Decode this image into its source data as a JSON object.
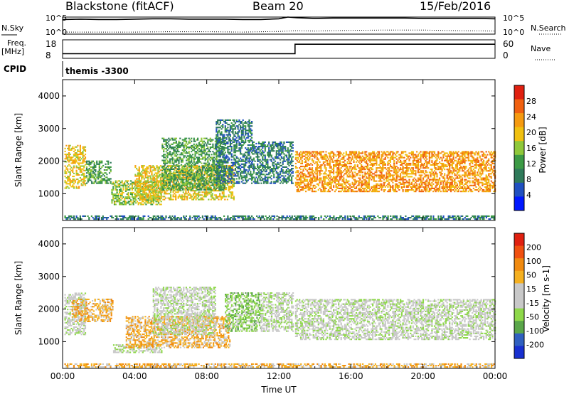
{
  "header": {
    "station": "Blackstone (fitACF)",
    "beam": "Beam 20",
    "date": "15/Feb/2016"
  },
  "summary": {
    "nsky_label": "N.Sky",
    "nsky_ticks": [
      "10^5",
      "10^0"
    ],
    "nsearch_label": "N.Search",
    "freq_label_1": "Freq.",
    "freq_label_2": "[MHz]",
    "freq_ticks": [
      "18",
      "8"
    ],
    "nave_label": "Nave",
    "nave_ticks": [
      "60",
      "0"
    ],
    "cpid_label": "CPID",
    "cpid_value": "themis -3300"
  },
  "colors": {
    "power_scale": [
      "#0018ff",
      "#2050c0",
      "#2f7a5a",
      "#3c9a45",
      "#8fc83a",
      "#f0c010",
      "#f59a10",
      "#f06010",
      "#e02010"
    ],
    "velocity_scale": [
      "#1830d0",
      "#3060c0",
      "#5aa64a",
      "#8ed84a",
      "#c8c8c8",
      "#c8c8c8",
      "#f5b020",
      "#f08a10",
      "#f05010",
      "#e02010"
    ]
  },
  "chart_data": [
    {
      "type": "line",
      "panel": "nsky-nsearch",
      "x_range": [
        "00:00",
        "24:00"
      ],
      "series": [
        {
          "name": "N.Sky",
          "style": "solid",
          "x": [
            0,
            1,
            2,
            3,
            4,
            5,
            6,
            7,
            8,
            9,
            10,
            11,
            12,
            12.5,
            13,
            14,
            15,
            16,
            17,
            18,
            19,
            20,
            21,
            22,
            23,
            24
          ],
          "y": [
            4.3,
            4.4,
            4.3,
            4.3,
            4.4,
            4.5,
            4.5,
            4.4,
            4.4,
            4.4,
            4.3,
            4.3,
            4.5,
            5.0,
            4.8,
            4.6,
            4.7,
            4.7,
            4.7,
            4.7,
            4.7,
            4.6,
            4.6,
            4.6,
            4.6,
            4.5
          ]
        },
        {
          "name": "N.Search",
          "style": "dotted",
          "x": [
            0,
            2,
            4,
            6,
            8,
            10,
            12,
            13,
            14,
            16,
            18,
            20,
            22,
            24
          ],
          "y": [
            0.6,
            0.6,
            0.6,
            0.7,
            0.7,
            0.6,
            0.8,
            1.0,
            0.9,
            1.1,
            1.2,
            1.2,
            1.0,
            0.9
          ]
        }
      ],
      "ylim": [
        0,
        5
      ]
    },
    {
      "type": "line",
      "panel": "freq-nave",
      "x_range": [
        "00:00",
        "24:00"
      ],
      "series": [
        {
          "name": "Freq.",
          "style": "solid",
          "x": [
            0,
            12.9,
            12.9,
            24
          ],
          "y": [
            10.5,
            10.5,
            15.6,
            15.6
          ]
        },
        {
          "name": "Nave",
          "style": "dotted",
          "x": [
            0,
            24
          ],
          "y": [
            8,
            8
          ]
        }
      ],
      "ylim": [
        8,
        18
      ]
    },
    {
      "type": "heatmap",
      "panel": "power",
      "title": "",
      "xlabel": "",
      "ylabel": "Slant Range [km]",
      "colorbar_label": "Power [dB]",
      "colorbar_ticks": [
        "28",
        "24",
        "20",
        "16",
        "12",
        "8",
        "4"
      ],
      "ylim": [
        180,
        4500
      ],
      "y_ticks": [
        "1000",
        "2000",
        "3000",
        "4000"
      ],
      "x_ticks": [
        "00:00",
        "04:00",
        "08:00",
        "12:00",
        "16:00",
        "20:00",
        "00:00"
      ],
      "regions": [
        {
          "t_start": 0.1,
          "t_end": 1.3,
          "r_low": 1150,
          "r_high": 2500,
          "level": 5
        },
        {
          "t_start": 1.3,
          "t_end": 2.7,
          "r_low": 1300,
          "r_high": 2000,
          "level": 3
        },
        {
          "t_start": 2.7,
          "t_end": 5.5,
          "r_low": 650,
          "r_high": 1400,
          "level": 4
        },
        {
          "t_start": 4.0,
          "t_end": 9.5,
          "r_low": 800,
          "r_high": 1900,
          "level": 5
        },
        {
          "t_start": 5.5,
          "t_end": 9.0,
          "r_low": 1100,
          "r_high": 2700,
          "level": 3
        },
        {
          "t_start": 8.5,
          "t_end": 10.5,
          "r_low": 1300,
          "r_high": 3300,
          "level": 2
        },
        {
          "t_start": 10.5,
          "t_end": 12.8,
          "r_low": 1300,
          "r_high": 2600,
          "level": 2
        },
        {
          "t_start": 12.9,
          "t_end": 24.0,
          "r_low": 1050,
          "r_high": 2300,
          "level": 6
        },
        {
          "t_start": 0.1,
          "t_end": 24.0,
          "r_low": 200,
          "r_high": 350,
          "level": 2
        }
      ]
    },
    {
      "type": "heatmap",
      "panel": "velocity",
      "title": "",
      "xlabel": "Time UT",
      "ylabel": "Slant Range [km]",
      "colorbar_label": "Velocity [m s-1]",
      "colorbar_ticks": [
        "200",
        "100",
        "50",
        "15",
        "-15",
        "-50",
        "-100",
        "-200"
      ],
      "ylim": [
        180,
        4500
      ],
      "y_ticks": [
        "1000",
        "2000",
        "3000",
        "4000"
      ],
      "x_ticks": [
        "00:00",
        "04:00",
        "08:00",
        "12:00",
        "16:00",
        "20:00",
        "00:00"
      ],
      "regions": [
        {
          "t_start": 0.1,
          "t_end": 1.3,
          "r_low": 1200,
          "r_high": 2500,
          "level": 4
        },
        {
          "t_start": 0.5,
          "t_end": 2.8,
          "r_low": 1600,
          "r_high": 2300,
          "level": 6
        },
        {
          "t_start": 2.8,
          "t_end": 5.5,
          "r_low": 650,
          "r_high": 900,
          "level": 4
        },
        {
          "t_start": 3.5,
          "t_end": 9.3,
          "r_low": 800,
          "r_high": 1800,
          "level": 6
        },
        {
          "t_start": 5.0,
          "t_end": 8.5,
          "r_low": 1200,
          "r_high": 2700,
          "level": 4
        },
        {
          "t_start": 9.0,
          "t_end": 11.0,
          "r_low": 1300,
          "r_high": 2500,
          "level": 3
        },
        {
          "t_start": 11.0,
          "t_end": 12.8,
          "r_low": 1300,
          "r_high": 2500,
          "level": 4
        },
        {
          "t_start": 12.9,
          "t_end": 24.0,
          "r_low": 1050,
          "r_high": 2300,
          "level": 4
        },
        {
          "t_start": 0.1,
          "t_end": 24.0,
          "r_low": 200,
          "r_high": 350,
          "level": 6
        }
      ]
    }
  ]
}
